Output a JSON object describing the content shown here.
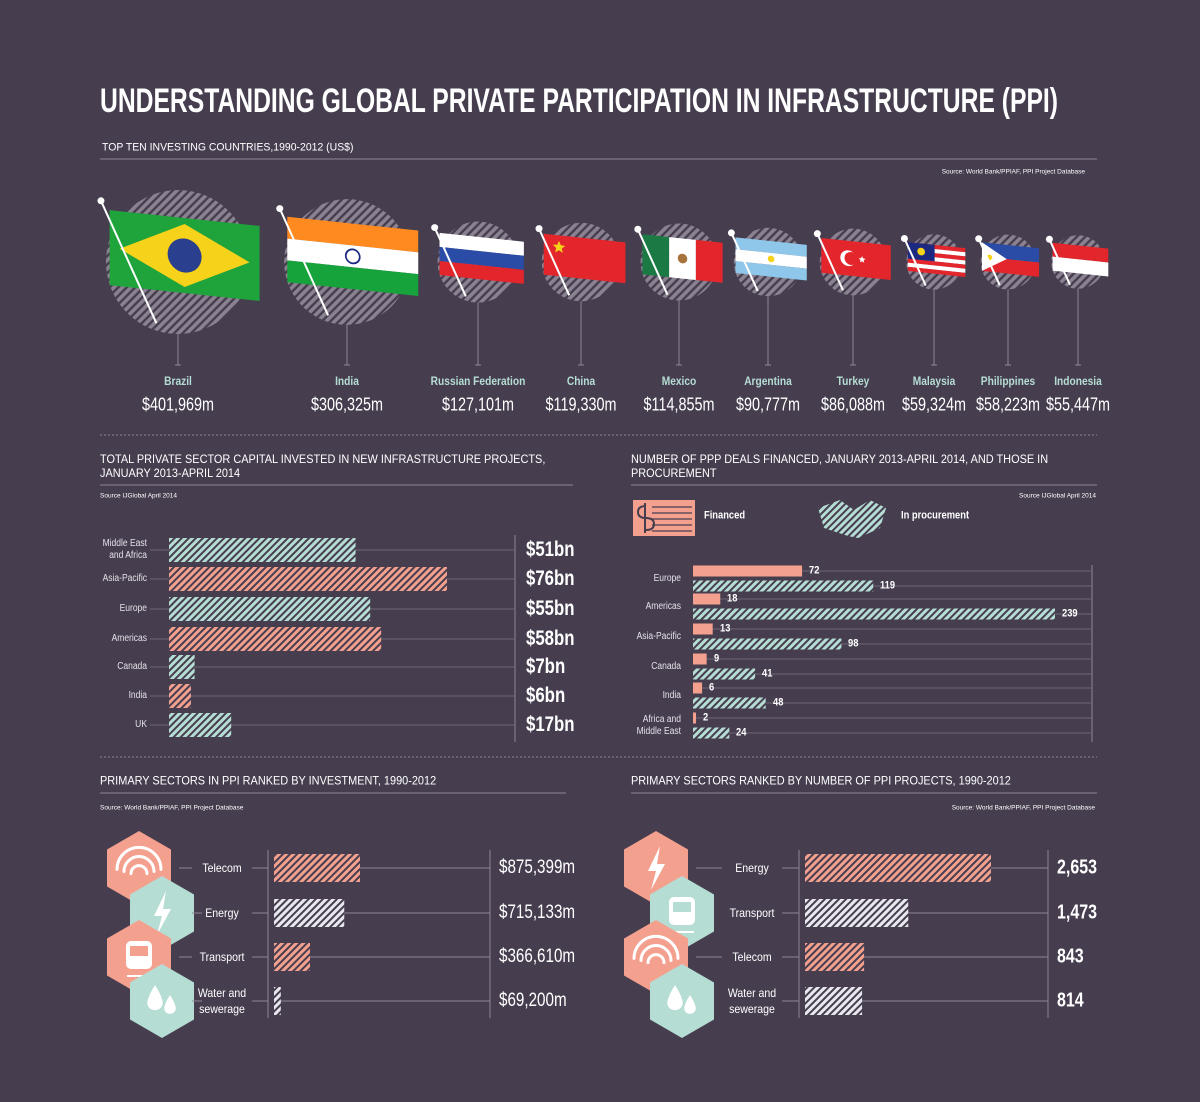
{
  "title": "UNDERSTANDING GLOBAL PRIVATE PARTICIPATION IN INFRASTRUCTURE (PPI)",
  "chart_data": [
    {
      "type": "bubble",
      "title": "TOP TEN INVESTING COUNTRIES,1990-2012 (US$)",
      "source": "Source: World Bank/PPIAF, PPI Project Database",
      "categories": [
        "Brazil",
        "India",
        "Russian Federation",
        "China",
        "Mexico",
        "Argentina",
        "Turkey",
        "Malaysia",
        "Philippines",
        "Indonesia"
      ],
      "values": [
        401969,
        306325,
        127101,
        119330,
        114855,
        90777,
        86088,
        59324,
        58223,
        55447
      ],
      "value_labels": [
        "$401,969m",
        "$306,325m",
        "$127,101m",
        "$119,330m",
        "$114,855m",
        "$90,777m",
        "$86,088m",
        "$59,324m",
        "$58,223m",
        "$55,447m"
      ]
    },
    {
      "type": "bar",
      "title": "TOTAL PRIVATE SECTOR CAPITAL INVESTED IN NEW INFRASTRUCTURE PROJECTS, JANUARY 2013-APRIL 2014",
      "source": "Source IJGlobal April 2014",
      "categories": [
        "Middle East and Africa",
        "Asia-Pacific",
        "Europe",
        "Americas",
        "Canada",
        "India",
        "UK"
      ],
      "values": [
        51,
        76,
        55,
        58,
        7,
        6,
        17
      ],
      "value_labels": [
        "$51bn",
        "$76bn",
        "$55bn",
        "$58bn",
        "$7bn",
        "$6bn",
        "$17bn"
      ],
      "colors": [
        "#b5ddd3",
        "#f4a08e",
        "#b5ddd3",
        "#f4a08e",
        "#b5ddd3",
        "#f4a08e",
        "#b5ddd3"
      ]
    },
    {
      "type": "grouped-bar",
      "title": "NUMBER OF PPP DEALS FINANCED, JANUARY 2013-APRIL 2014, AND THOSE IN PROCUREMENT",
      "source": "Source IJGlobal April 2014",
      "categories": [
        "Europe",
        "Americas",
        "Asia-Pacific",
        "Canada",
        "India",
        "Africa and Middle East"
      ],
      "series": [
        {
          "name": "Financed",
          "color": "#f4a08e",
          "values": [
            72,
            18,
            13,
            9,
            6,
            2
          ]
        },
        {
          "name": "In procurement",
          "color": "#b5ddd3",
          "values": [
            119,
            239,
            98,
            41,
            48,
            24
          ]
        }
      ]
    },
    {
      "type": "bar",
      "title": "PRIMARY SECTORS IN PPI RANKED BY INVESTMENT, 1990-2012",
      "source": "Source: World Bank/PPIAF, PPI Project Database",
      "categories": [
        "Telecom",
        "Energy",
        "Transport",
        "Water and sewerage"
      ],
      "values": [
        875399,
        715133,
        366610,
        69200
      ],
      "value_labels": [
        "$875,399m",
        "$715,133m",
        "$366,610m",
        "$69,200m"
      ],
      "colors": [
        "#f4a08e",
        "#e8e8ee",
        "#f4a08e",
        "#e8e8ee"
      ]
    },
    {
      "type": "bar",
      "title": "PRIMARY SECTORS RANKED BY NUMBER OF PPI PROJECTS, 1990-2012",
      "source": "Source: World Bank/PPIAF, PPI Project Database",
      "categories": [
        "Energy",
        "Transport",
        "Telecom",
        "Water and sewerage"
      ],
      "values": [
        2653,
        1473,
        843,
        814
      ],
      "value_labels": [
        "2,653",
        "1,473",
        "843",
        "814"
      ],
      "colors": [
        "#f4a08e",
        "#e8e8ee",
        "#f4a08e",
        "#e8e8ee"
      ]
    }
  ]
}
